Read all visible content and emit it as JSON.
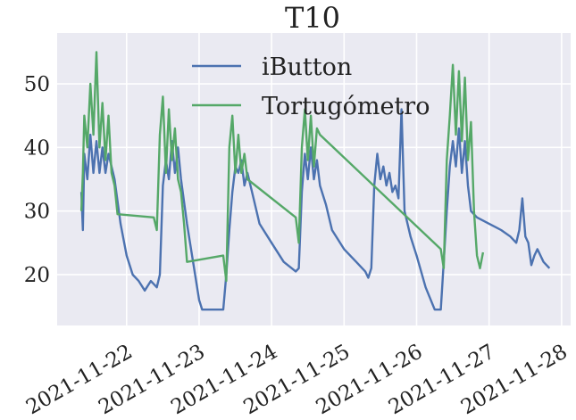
{
  "chart_data": {
    "type": "line",
    "title": "T10",
    "xlabel": "",
    "ylabel": "",
    "x_ticks": [
      "2021-11-22",
      "2021-11-23",
      "2021-11-24",
      "2021-11-25",
      "2021-11-26",
      "2021-11-27",
      "2021-11-28"
    ],
    "y_ticks": [
      20,
      30,
      40,
      50
    ],
    "xlim": [
      "2021-11-21 01:00",
      "2021-11-28 03:00"
    ],
    "ylim": [
      12,
      58
    ],
    "grid": true,
    "legend_position": "top-center",
    "series": [
      {
        "name": "iButton",
        "color": "#4c72b0",
        "points": [
          [
            "2021-11-21 09:00",
            33
          ],
          [
            "2021-11-21 09:30",
            27
          ],
          [
            "2021-11-21 10:00",
            39
          ],
          [
            "2021-11-21 11:00",
            35
          ],
          [
            "2021-11-21 12:00",
            42
          ],
          [
            "2021-11-21 13:00",
            36
          ],
          [
            "2021-11-21 14:00",
            41
          ],
          [
            "2021-11-21 15:00",
            36
          ],
          [
            "2021-11-21 16:00",
            40
          ],
          [
            "2021-11-21 17:00",
            36
          ],
          [
            "2021-11-21 18:00",
            39
          ],
          [
            "2021-11-21 20:00",
            35
          ],
          [
            "2021-11-21 22:00",
            28
          ],
          [
            "2021-11-22 00:00",
            23
          ],
          [
            "2021-11-22 02:00",
            20
          ],
          [
            "2021-11-22 04:00",
            19
          ],
          [
            "2021-11-22 06:00",
            17.5
          ],
          [
            "2021-11-22 08:00",
            19
          ],
          [
            "2021-11-22 10:00",
            18
          ],
          [
            "2021-11-22 11:00",
            20
          ],
          [
            "2021-11-22 12:00",
            34
          ],
          [
            "2021-11-22 13:00",
            38
          ],
          [
            "2021-11-22 14:00",
            35
          ],
          [
            "2021-11-22 15:00",
            41
          ],
          [
            "2021-11-22 16:00",
            36
          ],
          [
            "2021-11-22 17:00",
            40
          ],
          [
            "2021-11-22 18:00",
            35
          ],
          [
            "2021-11-22 20:00",
            28
          ],
          [
            "2021-11-22 22:00",
            22
          ],
          [
            "2021-11-23 00:00",
            16
          ],
          [
            "2021-11-23 01:00",
            14.5
          ],
          [
            "2021-11-23 08:00",
            14.5
          ],
          [
            "2021-11-23 09:00",
            20
          ],
          [
            "2021-11-23 10:00",
            27
          ],
          [
            "2021-11-23 11:00",
            33
          ],
          [
            "2021-11-23 12:00",
            37
          ],
          [
            "2021-11-23 13:00",
            36
          ],
          [
            "2021-11-23 14:00",
            38
          ],
          [
            "2021-11-23 15:00",
            34
          ],
          [
            "2021-11-23 16:00",
            36
          ],
          [
            "2021-11-23 18:00",
            32
          ],
          [
            "2021-11-23 20:00",
            28
          ],
          [
            "2021-11-24 00:00",
            25
          ],
          [
            "2021-11-24 04:00",
            22
          ],
          [
            "2021-11-24 08:00",
            20.5
          ],
          [
            "2021-11-24 09:00",
            21
          ],
          [
            "2021-11-24 10:00",
            33
          ],
          [
            "2021-11-24 11:00",
            39
          ],
          [
            "2021-11-24 12:00",
            35
          ],
          [
            "2021-11-24 13:00",
            40
          ],
          [
            "2021-11-24 14:00",
            35
          ],
          [
            "2021-11-24 15:00",
            38
          ],
          [
            "2021-11-24 16:00",
            34
          ],
          [
            "2021-11-24 18:00",
            31
          ],
          [
            "2021-11-24 20:00",
            27
          ],
          [
            "2021-11-25 00:00",
            24
          ],
          [
            "2021-11-25 04:00",
            22
          ],
          [
            "2021-11-25 07:00",
            20.5
          ],
          [
            "2021-11-25 08:00",
            19.5
          ],
          [
            "2021-11-25 09:00",
            21
          ],
          [
            "2021-11-25 10:00",
            34
          ],
          [
            "2021-11-25 11:00",
            39
          ],
          [
            "2021-11-25 12:00",
            35
          ],
          [
            "2021-11-25 13:00",
            37
          ],
          [
            "2021-11-25 14:00",
            34
          ],
          [
            "2021-11-25 15:00",
            36
          ],
          [
            "2021-11-25 16:00",
            33
          ],
          [
            "2021-11-25 17:00",
            34
          ],
          [
            "2021-11-25 18:00",
            32
          ],
          [
            "2021-11-25 19:00",
            46
          ],
          [
            "2021-11-25 20:00",
            30
          ],
          [
            "2021-11-25 22:00",
            26
          ],
          [
            "2021-11-26 00:00",
            23
          ],
          [
            "2021-11-26 03:00",
            18
          ],
          [
            "2021-11-26 06:00",
            14.5
          ],
          [
            "2021-11-26 08:00",
            14.5
          ],
          [
            "2021-11-26 09:00",
            22
          ],
          [
            "2021-11-26 10:00",
            30
          ],
          [
            "2021-11-26 11:00",
            37
          ],
          [
            "2021-11-26 12:00",
            41
          ],
          [
            "2021-11-26 13:00",
            37
          ],
          [
            "2021-11-26 14:00",
            43
          ],
          [
            "2021-11-26 15:00",
            36
          ],
          [
            "2021-11-26 16:00",
            41
          ],
          [
            "2021-11-26 17:00",
            34
          ],
          [
            "2021-11-26 18:00",
            30
          ],
          [
            "2021-11-26 20:00",
            29
          ],
          [
            "2021-11-27 00:00",
            28
          ],
          [
            "2021-11-27 04:00",
            27
          ],
          [
            "2021-11-27 07:00",
            26
          ],
          [
            "2021-11-27 09:00",
            25
          ],
          [
            "2021-11-27 10:00",
            27
          ],
          [
            "2021-11-27 11:00",
            32
          ],
          [
            "2021-11-27 12:00",
            26
          ],
          [
            "2021-11-27 13:00",
            25
          ],
          [
            "2021-11-27 14:00",
            21.5
          ],
          [
            "2021-11-27 15:00",
            23
          ],
          [
            "2021-11-27 16:00",
            24
          ],
          [
            "2021-11-27 18:00",
            22
          ],
          [
            "2021-11-27 20:00",
            21
          ]
        ]
      },
      {
        "name": "Tortugómetro",
        "color": "#55a868",
        "points": [
          [
            "2021-11-21 09:00",
            30
          ],
          [
            "2021-11-21 09:30",
            36
          ],
          [
            "2021-11-21 10:00",
            45
          ],
          [
            "2021-11-21 11:00",
            40
          ],
          [
            "2021-11-21 12:00",
            50
          ],
          [
            "2021-11-21 13:00",
            42
          ],
          [
            "2021-11-21 14:00",
            55
          ],
          [
            "2021-11-21 15:00",
            40
          ],
          [
            "2021-11-21 16:00",
            47
          ],
          [
            "2021-11-21 17:00",
            38
          ],
          [
            "2021-11-21 18:00",
            45
          ],
          [
            "2021-11-21 19:00",
            36
          ],
          [
            "2021-11-21 20:00",
            34
          ],
          [
            "2021-11-21 21:00",
            29.5
          ],
          [
            "2021-11-22 09:00",
            29
          ],
          [
            "2021-11-22 10:00",
            27
          ],
          [
            "2021-11-22 11:00",
            42
          ],
          [
            "2021-11-22 12:00",
            48
          ],
          [
            "2021-11-22 13:00",
            36
          ],
          [
            "2021-11-22 14:00",
            46
          ],
          [
            "2021-11-22 15:00",
            38
          ],
          [
            "2021-11-22 16:00",
            43
          ],
          [
            "2021-11-22 17:00",
            35
          ],
          [
            "2021-11-22 18:00",
            33
          ],
          [
            "2021-11-22 19:00",
            28
          ],
          [
            "2021-11-22 20:00",
            22
          ],
          [
            "2021-11-23 08:00",
            23
          ],
          [
            "2021-11-23 09:00",
            19
          ],
          [
            "2021-11-23 10:00",
            40
          ],
          [
            "2021-11-23 11:00",
            45
          ],
          [
            "2021-11-23 12:00",
            36
          ],
          [
            "2021-11-23 13:00",
            42
          ],
          [
            "2021-11-23 14:00",
            36
          ],
          [
            "2021-11-23 15:00",
            39
          ],
          [
            "2021-11-23 16:00",
            35
          ],
          [
            "2021-11-24 08:00",
            29
          ],
          [
            "2021-11-24 09:00",
            25
          ],
          [
            "2021-11-24 10:00",
            40
          ],
          [
            "2021-11-24 11:00",
            46
          ],
          [
            "2021-11-24 12:00",
            38
          ],
          [
            "2021-11-24 13:00",
            45
          ],
          [
            "2021-11-24 14:00",
            37
          ],
          [
            "2021-11-24 15:00",
            43
          ],
          [
            "2021-11-24 16:00",
            42
          ],
          [
            "2021-11-26 08:00",
            24
          ],
          [
            "2021-11-26 09:00",
            21
          ],
          [
            "2021-11-26 10:00",
            38
          ],
          [
            "2021-11-26 11:00",
            45
          ],
          [
            "2021-11-26 12:00",
            53
          ],
          [
            "2021-11-26 13:00",
            42
          ],
          [
            "2021-11-26 14:00",
            52
          ],
          [
            "2021-11-26 15:00",
            41
          ],
          [
            "2021-11-26 16:00",
            51
          ],
          [
            "2021-11-26 17:00",
            38
          ],
          [
            "2021-11-26 18:00",
            44
          ],
          [
            "2021-11-26 19:00",
            30
          ],
          [
            "2021-11-26 20:00",
            23
          ],
          [
            "2021-11-26 21:00",
            21
          ],
          [
            "2021-11-26 22:00",
            23.5
          ]
        ]
      }
    ]
  }
}
